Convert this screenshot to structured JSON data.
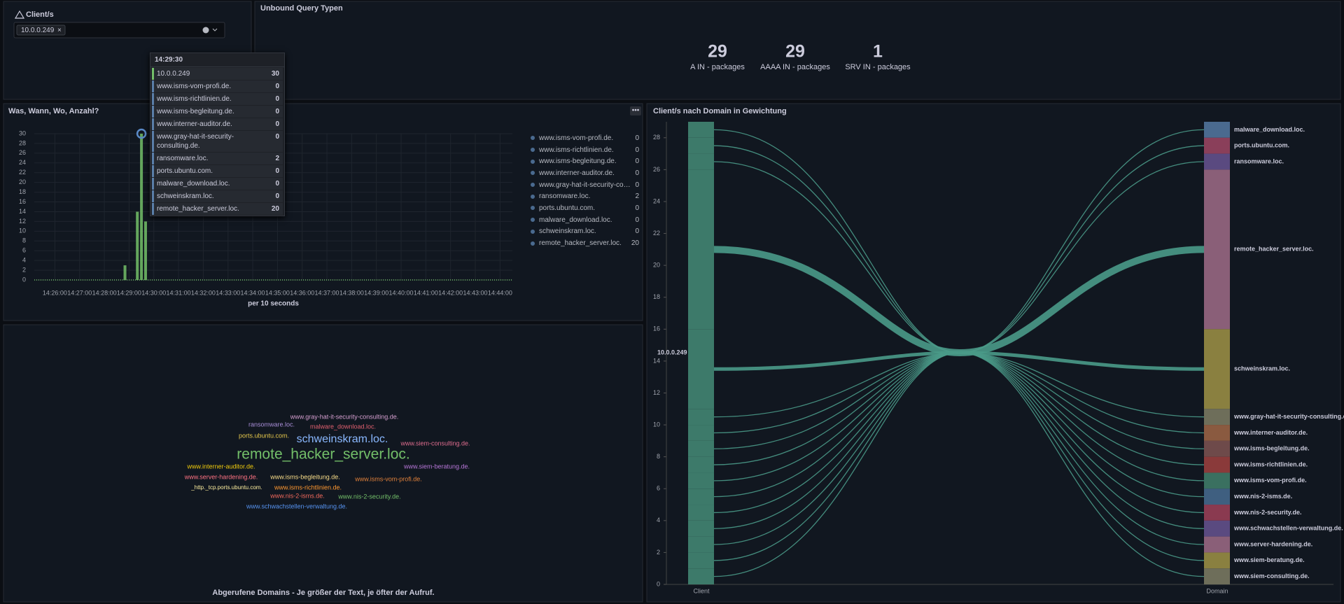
{
  "client_filter": {
    "label": "Client/s",
    "value": "10.0.0.249"
  },
  "stat_panel": {
    "title": "Unbound Query Typen",
    "stats": [
      {
        "value": 29,
        "label": "A IN - packages"
      },
      {
        "value": 29,
        "label": "AAAA IN - packages"
      },
      {
        "value": 1,
        "label": "SRV IN - packages"
      }
    ]
  },
  "time_panel": {
    "title": "Was, Wann, Wo, Anzahl?",
    "x_label": "per 10 seconds",
    "xlim": [
      "14:25:10",
      "14:44:30"
    ],
    "xticks": [
      "14:26:00",
      "14:27:00",
      "14:28:00",
      "14:29:00",
      "14:30:00",
      "14:31:00",
      "14:32:00",
      "14:33:00",
      "14:34:00",
      "14:35:00",
      "14:36:00",
      "14:37:00",
      "14:38:00",
      "14:39:00",
      "14:40:00",
      "14:41:00",
      "14:42:00",
      "14:43:00",
      "14:44:00"
    ],
    "ylim": [
      0,
      30
    ],
    "yticks": [
      0,
      2,
      4,
      6,
      8,
      10,
      12,
      14,
      16,
      18,
      20,
      22,
      24,
      26,
      28,
      30
    ],
    "bars": {
      "color": "#73bf69",
      "x": [
        "14:28:50",
        "14:29:20",
        "14:29:30",
        "14:29:40"
      ],
      "values": [
        3,
        14,
        30,
        12
      ]
    },
    "legend": [
      {
        "name": "www.isms-vom-profi.de.",
        "value": 0
      },
      {
        "name": "www.isms-richtlinien.de.",
        "value": 0
      },
      {
        "name": "www.isms-begleitung.de.",
        "value": 0
      },
      {
        "name": "www.interner-auditor.de.",
        "value": 0
      },
      {
        "name": "www.gray-hat-it-security-consulting.de.",
        "value": 0
      },
      {
        "name": "ransomware.loc.",
        "value": 2
      },
      {
        "name": "ports.ubuntu.com.",
        "value": 0
      },
      {
        "name": "malware_download.loc.",
        "value": 0
      },
      {
        "name": "schweinskram.loc.",
        "value": 0
      },
      {
        "name": "remote_hacker_server.loc.",
        "value": 20
      }
    ],
    "tooltip": {
      "time": "14:29:30",
      "rows": [
        {
          "name": "10.0.0.249",
          "value": 30
        },
        {
          "name": "www.isms-vom-profi.de.",
          "value": 0
        },
        {
          "name": "www.isms-richtlinien.de.",
          "value": 0
        },
        {
          "name": "www.isms-begleitung.de.",
          "value": 0
        },
        {
          "name": "www.interner-auditor.de.",
          "value": 0
        },
        {
          "name": "www.gray-hat-it-security-consulting.de.",
          "value": 0
        },
        {
          "name": "ransomware.loc.",
          "value": 2
        },
        {
          "name": "ports.ubuntu.com.",
          "value": 0
        },
        {
          "name": "malware_download.loc.",
          "value": 0
        },
        {
          "name": "schweinskram.loc.",
          "value": 0
        },
        {
          "name": "remote_hacker_server.loc.",
          "value": 20
        }
      ]
    }
  },
  "word_cloud": {
    "caption": "Abgerufene Domains - Je größer der Text, je öfter der Aufruf.",
    "words": [
      {
        "text": "www.gray-hat-it-security-consulting.de.",
        "color": "#d69fd0"
      },
      {
        "text": "ransomware.loc.",
        "color": "#a98ed8"
      },
      {
        "text": "malware_download.loc.",
        "color": "#e0606f"
      },
      {
        "text": "ports.ubuntu.com.",
        "color": "#e6c84c"
      },
      {
        "text": "schweinskram.loc.",
        "color": "#8ab8ff"
      },
      {
        "text": "www.siem-consulting.de.",
        "color": "#e06d8f"
      },
      {
        "text": "remote_hacker_server.loc.",
        "color": "#73bf69"
      },
      {
        "text": "www.interner-auditor.de.",
        "color": "#f2cc0c"
      },
      {
        "text": "www.siem-beratung.de.",
        "color": "#b877d9"
      },
      {
        "text": "www.server-hardening.de.",
        "color": "#ff7383"
      },
      {
        "text": "www.isms-begleitung.de.",
        "color": "#fade8a"
      },
      {
        "text": "www.isms-vom-profi.de.",
        "color": "#e0803a"
      },
      {
        "text": "_http._tcp.ports.ubuntu.com.",
        "color": "#fff0a0"
      },
      {
        "text": "www.isms-richtlinien.de.",
        "color": "#ff9830"
      },
      {
        "text": "www.nis-2-isms.de.",
        "color": "#f2695c"
      },
      {
        "text": "www.nis-2-security.de.",
        "color": "#73bf69"
      },
      {
        "text": "www.schwachstellen-verwaltung.de.",
        "color": "#5794f2"
      }
    ]
  },
  "sankey": {
    "title": "Client/s nach Domain in Gewichtung",
    "source": "10.0.0.249",
    "source_color": "#3d7a6a",
    "link_color": "#4a9a88",
    "source_axis": "Client",
    "target_axis": "Domain",
    "ylim": [
      0,
      29
    ],
    "yticks": [
      0,
      2,
      4,
      6,
      8,
      10,
      12,
      14,
      16,
      18,
      20,
      22,
      24,
      26,
      28
    ],
    "links": [
      {
        "target": "malware_download.loc.",
        "value": 1,
        "color": "#4a6a8f"
      },
      {
        "target": "ports.ubuntu.com.",
        "value": 1,
        "color": "#8a3f5a"
      },
      {
        "target": "ransomware.loc.",
        "value": 1,
        "color": "#5a4a80"
      },
      {
        "target": "remote_hacker_server.loc.",
        "value": 10,
        "color": "#8a5f78"
      },
      {
        "target": "schweinskram.loc.",
        "value": 5,
        "color": "#8a8040"
      },
      {
        "target": "www.gray-hat-it-security-consulting.de.",
        "value": 1,
        "color": "#6e6e5a"
      },
      {
        "target": "www.interner-auditor.de.",
        "value": 1,
        "color": "#8a5a40"
      },
      {
        "target": "www.isms-begleitung.de.",
        "value": 1,
        "color": "#6e4a4a"
      },
      {
        "target": "www.isms-richtlinien.de.",
        "value": 1,
        "color": "#8a3a3a"
      },
      {
        "target": "www.isms-vom-profi.de.",
        "value": 1,
        "color": "#3a7060"
      },
      {
        "target": "www.nis-2-isms.de.",
        "value": 1,
        "color": "#3f5f80"
      },
      {
        "target": "www.nis-2-security.de.",
        "value": 1,
        "color": "#8a3a50"
      },
      {
        "target": "www.schwachstellen-verwaltung.de.",
        "value": 1,
        "color": "#5a4a80"
      },
      {
        "target": "www.server-hardening.de.",
        "value": 1,
        "color": "#8a5f78"
      },
      {
        "target": "www.siem-beratung.de.",
        "value": 1,
        "color": "#8a8040"
      },
      {
        "target": "www.siem-consulting.de.",
        "value": 1,
        "color": "#6e6e5a"
      }
    ]
  }
}
